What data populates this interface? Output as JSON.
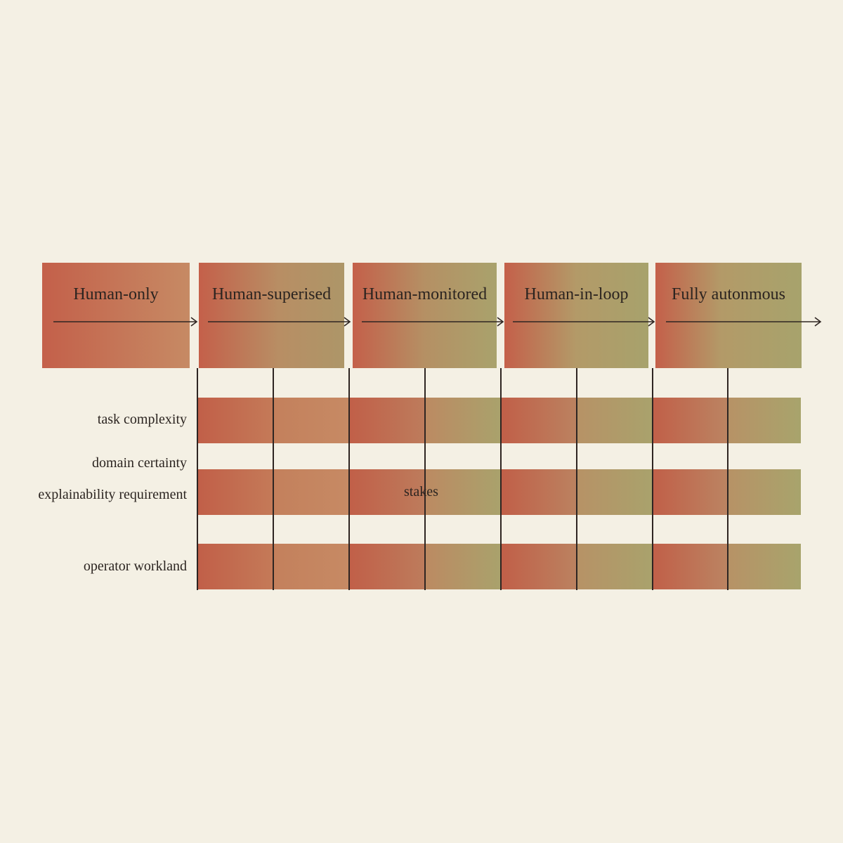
{
  "stages": [
    {
      "label": "Human-only"
    },
    {
      "label": "Human-superised"
    },
    {
      "label": "Human-monitored"
    },
    {
      "label": "Human-in-loop"
    },
    {
      "label": "Fully autonmous"
    }
  ],
  "factors": [
    {
      "label": "task complexity"
    },
    {
      "label": "domain certainty"
    },
    {
      "label": "explainability requirement"
    },
    {
      "label": "operator workland"
    }
  ],
  "center_annotation": "stakes",
  "colors": {
    "background": "#f4f0e4",
    "low_autonomy": "#c4604a",
    "high_autonomy": "#a9a26c",
    "lines": "#2e2522"
  }
}
